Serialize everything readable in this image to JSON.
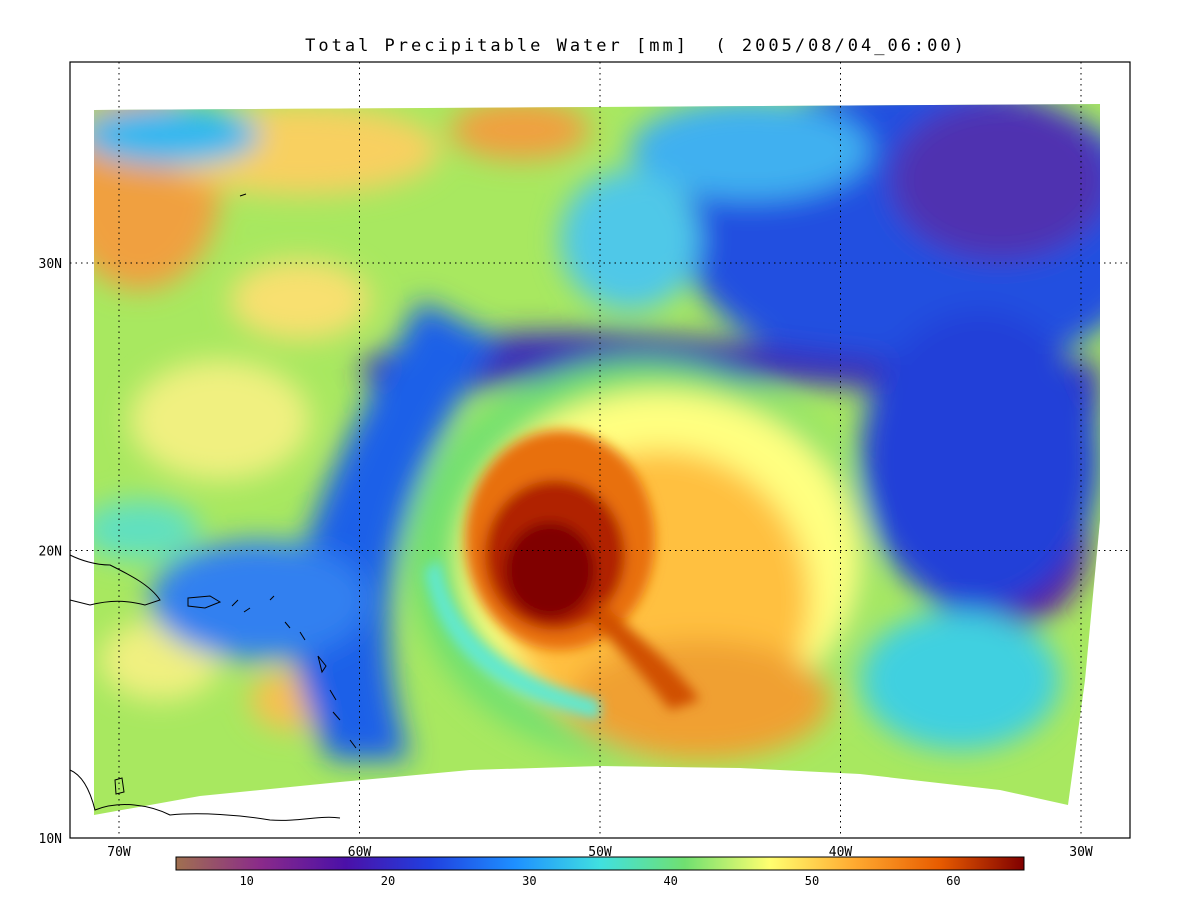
{
  "title": "Total Precipitable Water [mm]  ( 2005/08/04_06:00)",
  "map": {
    "lon_range": [
      -72,
      -28
    ],
    "lat_range": [
      10,
      37
    ],
    "lon_ticks": [
      {
        "label": "70W",
        "value": -70
      },
      {
        "label": "60W",
        "value": -60
      },
      {
        "label": "50W",
        "value": -50
      },
      {
        "label": "40W",
        "value": -40
      },
      {
        "label": "30W",
        "value": -30
      }
    ],
    "lat_ticks": [
      {
        "label": "10N",
        "value": 10
      },
      {
        "label": "20N",
        "value": 20
      },
      {
        "label": "30N",
        "value": 30
      }
    ],
    "grid": "dotted",
    "coastlines": [
      "Hispaniola",
      "Puerto Rico",
      "Lesser Antilles",
      "Venezuela coast"
    ]
  },
  "features": {
    "storm_center": {
      "lon": -51.5,
      "lat": 19.2,
      "peak_tpw_mm": 65
    },
    "dry_region_east": {
      "lon": -33,
      "lat": 19,
      "tpw_mm": 15
    },
    "dry_band_north": {
      "lat": 26.5,
      "tpw_mm": 22
    }
  },
  "colorbar": {
    "min": 5,
    "max": 65,
    "ticks": [
      {
        "label": "10",
        "value": 10
      },
      {
        "label": "20",
        "value": 20
      },
      {
        "label": "30",
        "value": 30
      },
      {
        "label": "40",
        "value": 40
      },
      {
        "label": "50",
        "value": 50
      },
      {
        "label": "60",
        "value": 60
      }
    ],
    "colors": [
      "#a07050",
      "#8a2a8a",
      "#4b10a8",
      "#2040e0",
      "#1e90ff",
      "#40e0e0",
      "#70e070",
      "#ffff70",
      "#ffaa30",
      "#e85c00",
      "#800000"
    ]
  }
}
